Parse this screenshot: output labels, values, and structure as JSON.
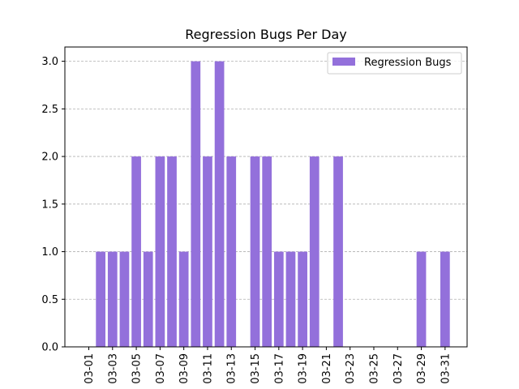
{
  "chart_data": {
    "type": "bar",
    "title": "Regression Bugs Per Day",
    "xlabel": "",
    "ylabel": "",
    "categories": [
      "03-01",
      "03-02",
      "03-03",
      "03-04",
      "03-05",
      "03-06",
      "03-07",
      "03-08",
      "03-09",
      "03-10",
      "03-11",
      "03-12",
      "03-13",
      "03-14",
      "03-15",
      "03-16",
      "03-17",
      "03-18",
      "03-19",
      "03-20",
      "03-21",
      "03-22",
      "03-23",
      "03-24",
      "03-25",
      "03-26",
      "03-27",
      "03-28",
      "03-29",
      "03-30",
      "03-31"
    ],
    "series": [
      {
        "name": "Regression Bugs",
        "color": "#9370DB",
        "values": [
          0,
          1,
          1,
          1,
          2,
          1,
          2,
          2,
          1,
          3,
          2,
          3,
          2,
          0,
          2,
          2,
          1,
          1,
          1,
          2,
          0,
          2,
          0,
          0,
          0,
          0,
          0,
          0,
          1,
          0,
          1
        ]
      }
    ],
    "x_tick_labels": [
      "03-01",
      "03-03",
      "03-05",
      "03-07",
      "03-09",
      "03-11",
      "03-13",
      "03-15",
      "03-17",
      "03-19",
      "03-21",
      "03-23",
      "03-25",
      "03-27",
      "03-29",
      "03-31"
    ],
    "y_ticks": [
      0.0,
      0.5,
      1.0,
      1.5,
      2.0,
      2.5,
      3.0
    ],
    "ylim": [
      0,
      3.15
    ],
    "grid": "y-dashed",
    "legend_position": "top-right"
  }
}
